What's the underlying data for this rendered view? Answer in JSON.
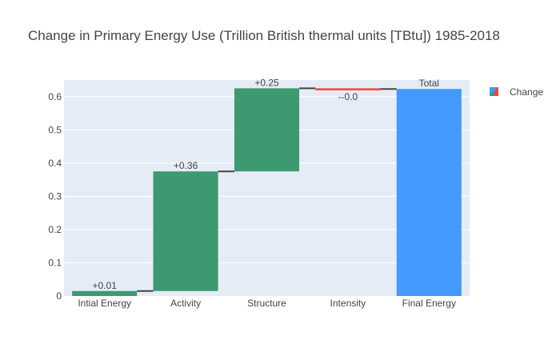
{
  "chart_data": {
    "type": "waterfall",
    "title": "Change in Primary Energy Use (Trillion British thermal units [TBtu]) 1985-2018",
    "xlabel": "",
    "ylabel": "",
    "ylim": [
      0,
      0.65
    ],
    "yticks": [
      0,
      0.1,
      0.2,
      0.3,
      0.4,
      0.5,
      0.6
    ],
    "ytick_labels": [
      "0",
      "0.1",
      "0.2",
      "0.3",
      "0.4",
      "0.5",
      "0.6"
    ],
    "grid": true,
    "legend": {
      "position": "top-right",
      "entries": [
        "Change"
      ]
    },
    "categories": [
      "Intial Energy",
      "Activity",
      "Structure",
      "Intensity",
      "Final Energy"
    ],
    "measures": [
      "relative",
      "relative",
      "relative",
      "relative",
      "total"
    ],
    "values": [
      0.015,
      0.36,
      0.25,
      -0.002,
      0.623
    ],
    "text_labels": [
      "+0.01",
      "+0.36",
      "+0.25",
      "--0.0",
      "Total"
    ],
    "colors": {
      "increasing": "#3d9970",
      "decreasing": "#ff4136",
      "total": "#4499ff",
      "connector": "#444444",
      "plot_bg": "#e5ecf6",
      "gridline": "#ffffff"
    }
  }
}
